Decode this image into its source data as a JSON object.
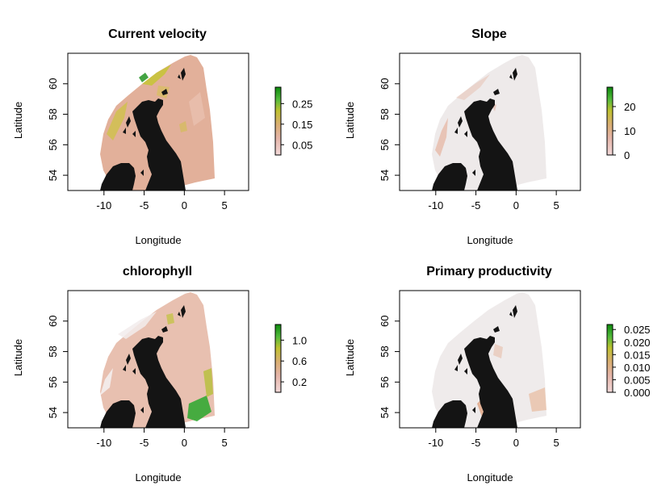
{
  "colors": {
    "land": "#141414",
    "legend_gradient": [
      "#f2d8d8",
      "#e4b4a8",
      "#d9ae72",
      "#bfc030",
      "#52b93b",
      "#0d8a0d"
    ]
  },
  "panels": [
    {
      "title": "Current velocity",
      "xlabel": "Longitude",
      "ylabel": "Latitude",
      "xticks": [
        "-10",
        "-5",
        "0",
        "5"
      ],
      "yticks": [
        "54",
        "56",
        "58",
        "60"
      ],
      "legend": {
        "min": 0.0,
        "max": 0.33,
        "ticks": [
          "0.05",
          "0.15",
          "0.25"
        ]
      },
      "sea_color": "#e2b09a"
    },
    {
      "title": "Slope",
      "xlabel": "Longitude",
      "ylabel": "Latitude",
      "xticks": [
        "-10",
        "-5",
        "0",
        "5"
      ],
      "yticks": [
        "54",
        "56",
        "58",
        "60"
      ],
      "legend": {
        "min": 0,
        "max": 28,
        "ticks": [
          "0",
          "10",
          "20"
        ]
      },
      "sea_color": "#eeeaea"
    },
    {
      "title": "chlorophyll",
      "xlabel": "Longitude",
      "ylabel": "Latitude",
      "xticks": [
        "-10",
        "-5",
        "0",
        "5"
      ],
      "yticks": [
        "54",
        "56",
        "58",
        "60"
      ],
      "legend": {
        "min": 0.0,
        "max": 1.3,
        "ticks": [
          "0.2",
          "0.6",
          "1.0"
        ]
      },
      "sea_color": "#e8c0b0"
    },
    {
      "title": "Primary productivity",
      "xlabel": "Longitude",
      "ylabel": "Latitude",
      "xticks": [
        "-10",
        "-5",
        "0",
        "5"
      ],
      "yticks": [
        "54",
        "56",
        "58",
        "60"
      ],
      "legend": {
        "min": 0.0,
        "max": 0.027,
        "ticks": [
          "0.000",
          "0.005",
          "0.010",
          "0.015",
          "0.020",
          "0.025"
        ]
      },
      "sea_color": "#efebeb"
    }
  ]
}
